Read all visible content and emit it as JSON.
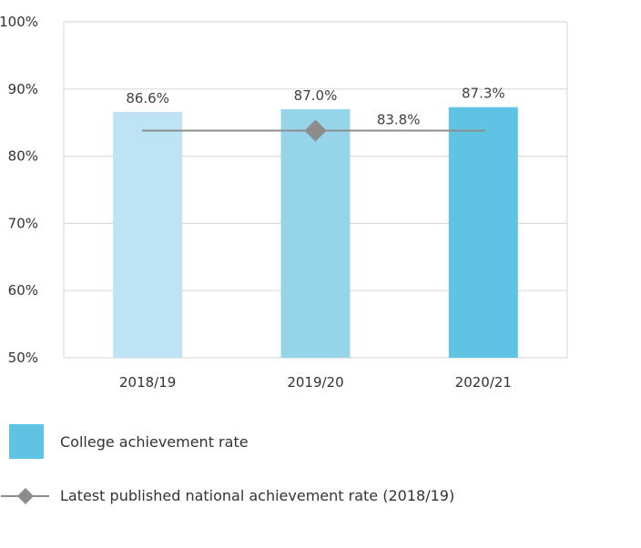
{
  "chart_data": {
    "type": "bar",
    "categories": [
      "2018/19",
      "2019/20",
      "2020/21"
    ],
    "series": [
      {
        "name": "College achievement rate",
        "values": [
          86.6,
          87.0,
          87.3
        ],
        "colors": [
          "#bde3f4",
          "#96d4ea",
          "#5fc4e4"
        ]
      }
    ],
    "value_labels": [
      "86.6%",
      "87.0%",
      "87.3%"
    ],
    "reference_line": {
      "name": "Latest published national achievement rate (2018/19)",
      "value": 83.8,
      "label": "83.8%",
      "color": "#8c8c8c",
      "marker": "diamond"
    },
    "ylim": [
      50,
      100
    ],
    "yticks": [
      50,
      60,
      70,
      80,
      90,
      100
    ],
    "ytick_labels": [
      "50%",
      "60%",
      "70%",
      "80%",
      "90%",
      "100%"
    ],
    "grid": true,
    "legend_position": "bottom"
  },
  "legend": {
    "college_label": "College achievement rate",
    "national_label": "Latest published national achievement rate (2018/19)",
    "college_color": "#5fc4e4",
    "national_color": "#8c8c8c"
  }
}
